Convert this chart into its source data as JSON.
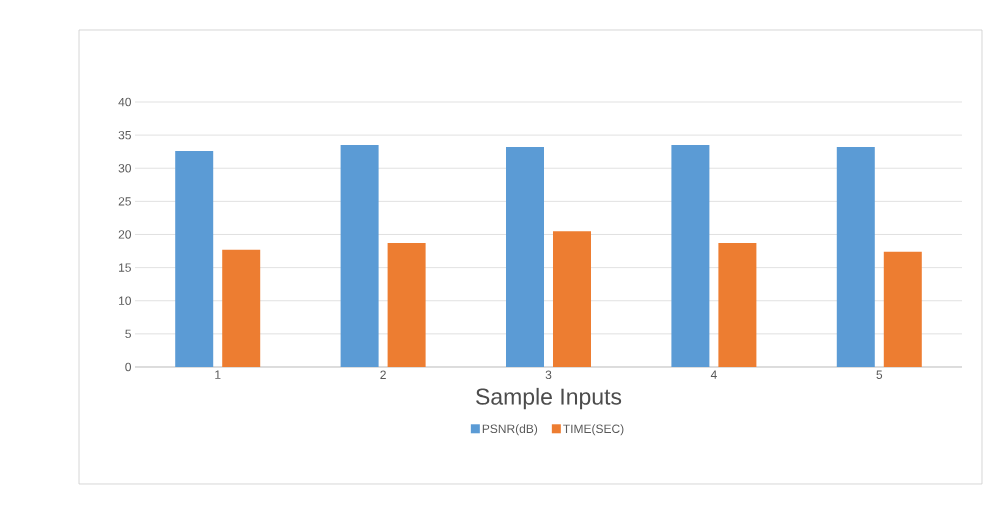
{
  "chart_data": {
    "type": "bar",
    "xlabel": "Sample Inputs",
    "categories": [
      "1",
      "2",
      "3",
      "4",
      "5"
    ],
    "series": [
      {
        "name": "PSNR(dB)",
        "color": "#5b9bd5",
        "values": [
          32.6,
          33.5,
          33.2,
          33.5,
          33.2
        ]
      },
      {
        "name": "TIME(SEC)",
        "color": "#ed7d31",
        "values": [
          17.7,
          18.7,
          20.5,
          18.7,
          17.4
        ]
      }
    ],
    "ylim": [
      0,
      40
    ],
    "yticks": [
      0,
      5,
      10,
      15,
      20,
      25,
      30,
      35,
      40
    ],
    "grid": "y",
    "legend": "bottom"
  }
}
